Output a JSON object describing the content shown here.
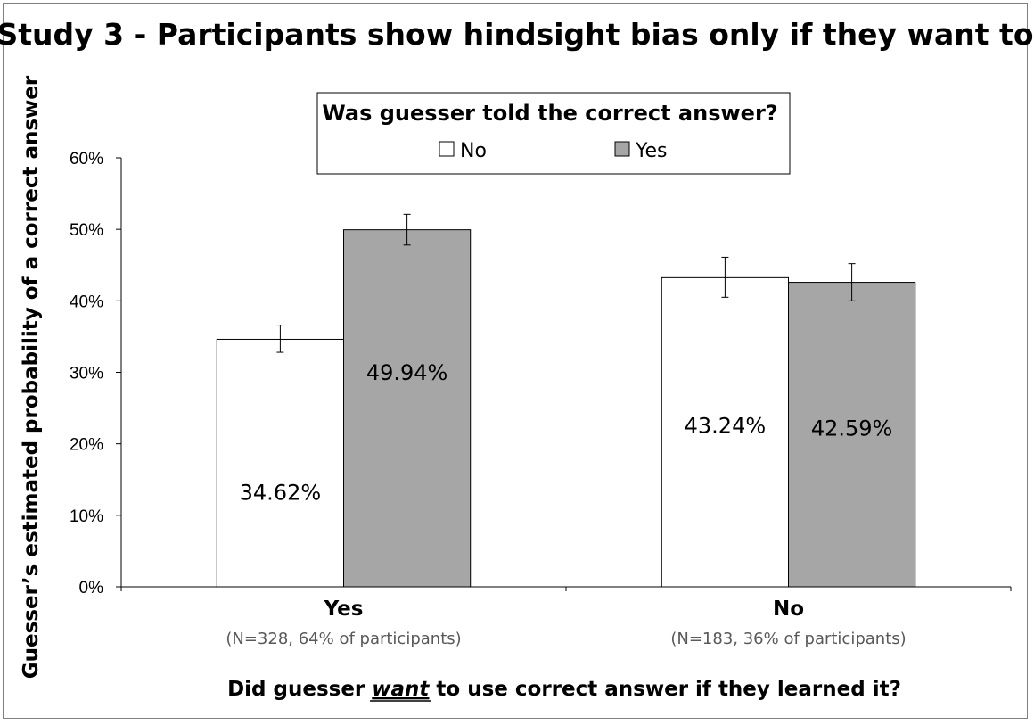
{
  "chart_data": {
    "type": "bar",
    "title": "Study 3 - Participants show hindsight bias only if they want to",
    "ylabel": "Guesser’s estimated probability of  a correct answer",
    "xlabel_parts": [
      "Did guesser ",
      "want",
      " to use correct answer if they learned it?"
    ],
    "ylim": [
      0,
      60
    ],
    "yticks": [
      "0%",
      "10%",
      "20%",
      "30%",
      "40%",
      "50%",
      "60%"
    ],
    "grid": false,
    "legend": {
      "title": "Was guesser told the correct answer?",
      "placement": "top-center",
      "entries": [
        "No",
        "Yes"
      ]
    },
    "categories": [
      "Yes",
      "No"
    ],
    "category_subtitles": [
      "(N=328, 64% of participants)",
      "(N=183, 36% of participants)"
    ],
    "series": [
      {
        "name": "No",
        "color": "#ffffff",
        "values": [
          34.62,
          43.24
        ],
        "labels": [
          "34.62%",
          "43.24%"
        ],
        "error_low": [
          32.8,
          40.5
        ],
        "error_high": [
          36.6,
          46.1
        ]
      },
      {
        "name": "Yes",
        "color": "#a6a6a6",
        "values": [
          49.94,
          42.59
        ],
        "labels": [
          "49.94%",
          "42.59%"
        ],
        "error_low": [
          47.8,
          40.0
        ],
        "error_high": [
          52.1,
          45.2
        ]
      }
    ]
  }
}
